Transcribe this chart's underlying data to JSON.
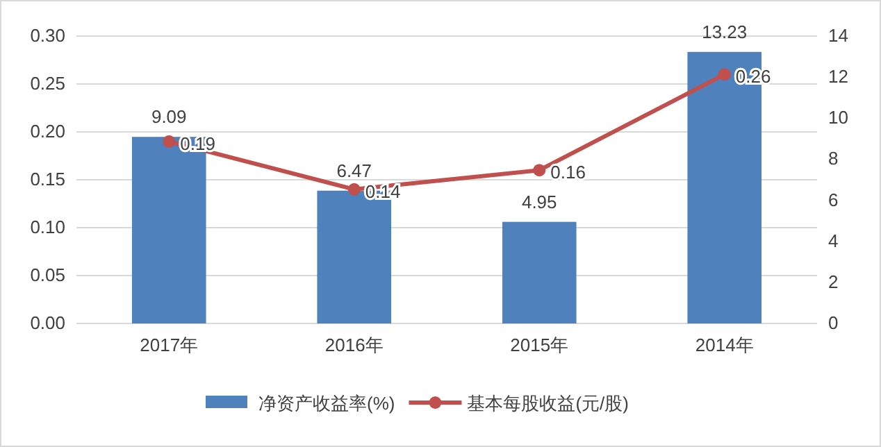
{
  "chart_data": {
    "type": "bar",
    "categories": [
      "2017年",
      "2016年",
      "2015年",
      "2014年"
    ],
    "series": [
      {
        "name": "净资产收益率(%)",
        "axis": "y2",
        "color": "#4f81bd",
        "values": [
          9.09,
          6.47,
          4.95,
          13.23
        ]
      },
      {
        "name": "基本每股收益(元/股)",
        "type": "line",
        "axis": "y",
        "color": "#c0504d",
        "values": [
          0.19,
          0.14,
          0.16,
          0.26
        ]
      }
    ],
    "ylim": [
      0,
      0.3
    ],
    "yticks": [
      {
        "value": 0,
        "label": "0.00"
      },
      {
        "value": 0.05,
        "label": "0.05"
      },
      {
        "value": 0.1,
        "label": "0.10"
      },
      {
        "value": 0.15,
        "label": "0.15"
      },
      {
        "value": 0.2,
        "label": "0.20"
      },
      {
        "value": 0.25,
        "label": "0.25"
      },
      {
        "value": 0.3,
        "label": "0.30"
      }
    ],
    "y2lim": [
      0,
      14
    ],
    "y2ticks": [
      0,
      2,
      4,
      6,
      8,
      10,
      12,
      14
    ],
    "grid": "y",
    "legend": "bottom",
    "marker": "circle",
    "line_style": "solid",
    "data_labels": true
  }
}
